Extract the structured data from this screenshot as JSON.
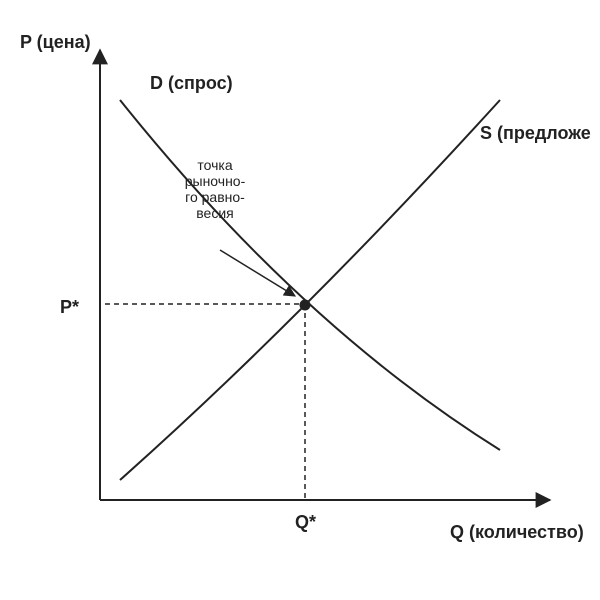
{
  "axes": {
    "y_label": "P (цена)",
    "x_label": "Q (количество)"
  },
  "curves": {
    "demand": "D (спрос)",
    "supply": "S (предложе"
  },
  "annotation": {
    "lines": [
      "точка",
      "рыночно-",
      "го равно-",
      "весия"
    ]
  },
  "equilibrium": {
    "price": "P*",
    "quantity": "Q*"
  }
}
